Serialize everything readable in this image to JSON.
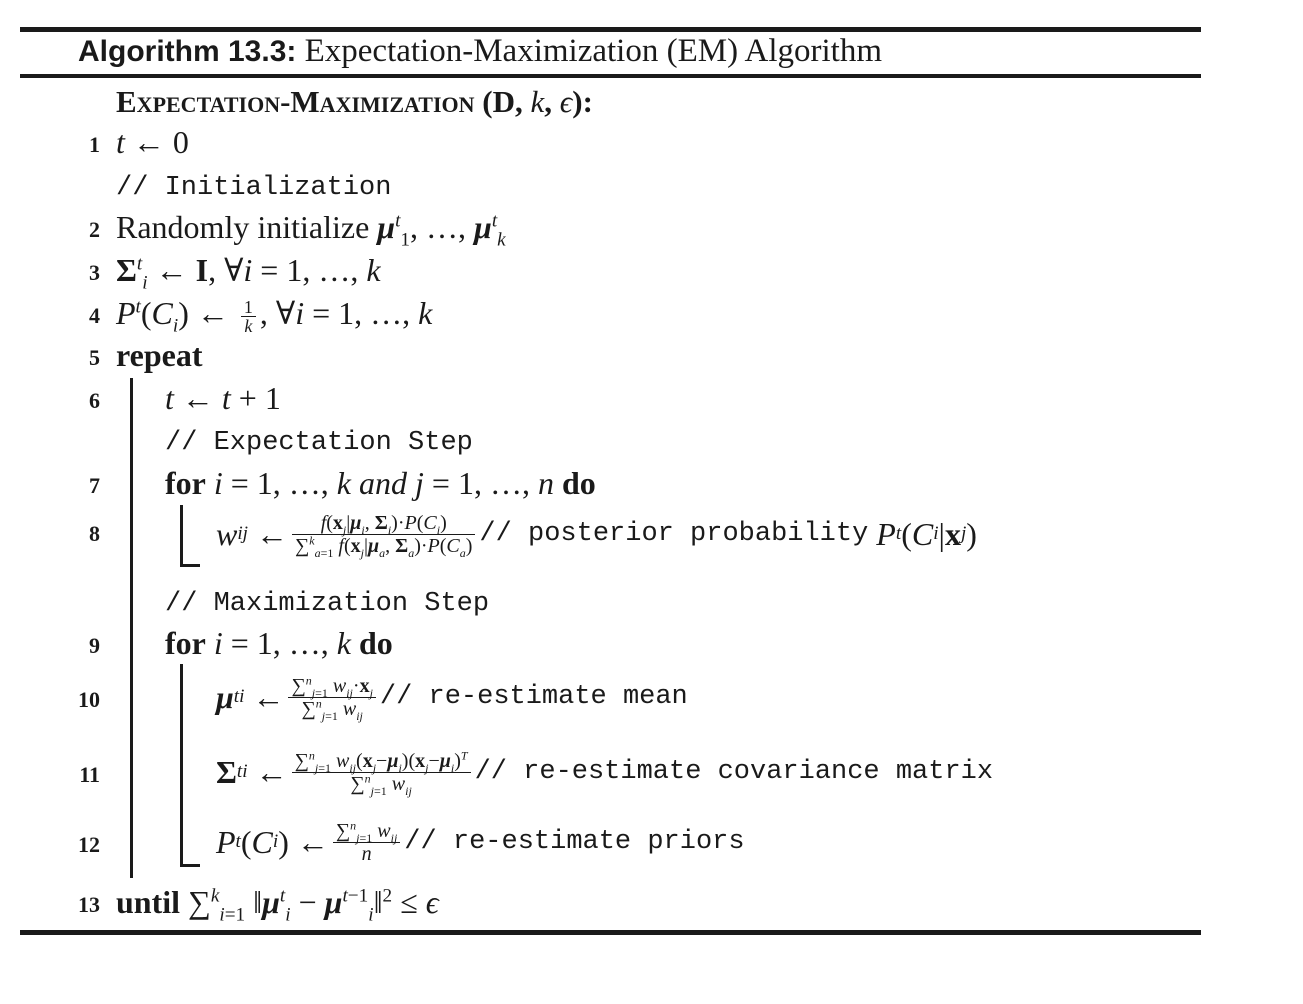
{
  "caption": {
    "label": "Algorithm 13.3:",
    "title": "Expectation-Maximization (EM) Algorithm"
  },
  "procedure": {
    "name": "Expectation-Maximization",
    "args": "(D, k, ϵ):"
  },
  "lines": [
    {
      "num": "1",
      "text": "t ← 0"
    },
    {
      "num": "",
      "comment": "// Initialization"
    },
    {
      "num": "2",
      "text": "Randomly initialize μ1t, …, μkt"
    },
    {
      "num": "3",
      "text": "Σit ← I, ∀i = 1, …, k"
    },
    {
      "num": "4",
      "text": "Pt(Ci) ← 1/k, ∀i = 1, …, k"
    },
    {
      "num": "5",
      "keyword": "repeat"
    },
    {
      "num": "6",
      "text": "t ← t + 1"
    },
    {
      "num": "",
      "comment": "// Expectation Step"
    },
    {
      "num": "7",
      "text": "for i = 1, …, k and j = 1, …, n do"
    },
    {
      "num": "8",
      "text": "wij ← f(xj|μi,Σi)·P(Ci) / Σa=1..k f(xj|μa,Σa)·P(Ca)",
      "comment": "// posterior probability",
      "tail": "Pt(Ci|xj)"
    },
    {
      "num": "",
      "comment": "// Maximization Step"
    },
    {
      "num": "9",
      "text": "for i = 1, …, k do"
    },
    {
      "num": "10",
      "text": "μit ← Σj=1..n wij·xj / Σj=1..n wij",
      "comment": "// re-estimate mean"
    },
    {
      "num": "11",
      "text": "Σit ← Σj=1..n wij(xj−μi)(xj−μi)T / Σj=1..n wij",
      "comment": "// re-estimate covariance matrix"
    },
    {
      "num": "12",
      "text": "Pt(Ci) ← Σj=1..n wij / n",
      "comment": "// re-estimate priors"
    },
    {
      "num": "13",
      "keyword": "until",
      "text": "Σi=1..k ‖μit − μit−1‖2 ≤ ϵ"
    }
  ]
}
